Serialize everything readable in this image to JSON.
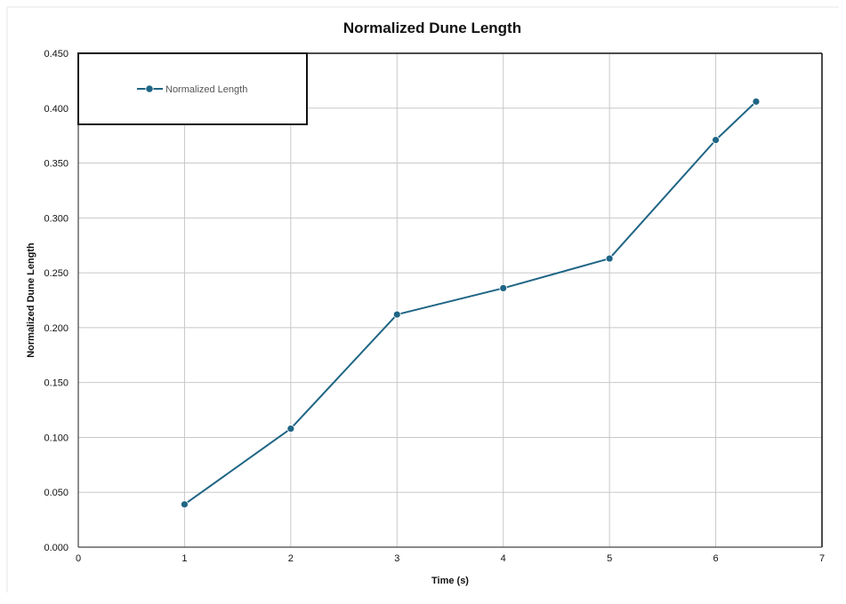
{
  "chart_data": {
    "type": "line",
    "title": "Normalized Dune Length",
    "xlabel": "Time (s)",
    "ylabel": "Normalized Dune Length",
    "xlim": [
      0,
      7
    ],
    "ylim": [
      0,
      0.45
    ],
    "x_ticks": [
      0,
      1,
      2,
      3,
      4,
      5,
      6,
      7
    ],
    "y_ticks": [
      0.0,
      0.05,
      0.1,
      0.15,
      0.2,
      0.25,
      0.3,
      0.35,
      0.4,
      0.45
    ],
    "x_tick_labels": [
      "0",
      "1",
      "2",
      "3",
      "4",
      "5",
      "6",
      "7"
    ],
    "y_tick_labels": [
      "0.000",
      "0.050",
      "0.100",
      "0.150",
      "0.200",
      "0.250",
      "0.300",
      "0.350",
      "0.400",
      "0.450"
    ],
    "grid": true,
    "legend_position": "top-left",
    "series": [
      {
        "name": "Normalized Length",
        "color": "#1f6585",
        "x": [
          1,
          2,
          3,
          4,
          5,
          6,
          6.38
        ],
        "y": [
          0.039,
          0.108,
          0.212,
          0.236,
          0.263,
          0.371,
          0.406
        ]
      }
    ]
  }
}
